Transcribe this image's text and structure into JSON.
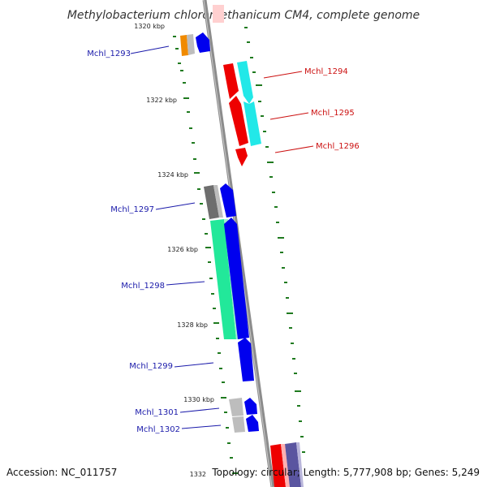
{
  "title": "Methylobacterium chloromethanicum CM4, complete genome",
  "accession": "Accession: NC_011757",
  "topology": "Topology: circular; Length: 5,777,908 bp; Genes: 5,249",
  "ticks": {
    "t1320": "1320 kbp",
    "t1322": "1322 kbp",
    "t1324": "1324 kbp",
    "t1326": "1326 kbp",
    "t1328": "1328 kbp",
    "t1330": "1330 kbp",
    "t1332": "1332"
  },
  "genes": {
    "g1293": "Mchl_1293",
    "g1294": "Mchl_1294",
    "g1295": "Mchl_1295",
    "g1296": "Mchl_1296",
    "g1297": "Mchl_1297",
    "g1298": "Mchl_1298",
    "g1299": "Mchl_1299",
    "g1301": "Mchl_1301",
    "g1302": "Mchl_1302"
  },
  "colors": {
    "backbone": "#8c8c8c",
    "tick": "#1f7a1f",
    "forward_label": "#1a1aaa",
    "reverse_label": "#cc1111",
    "cds_blue": "#0000ee",
    "cds_red": "#ee0000",
    "cds_cyan": "#22e8e8",
    "cds_green": "#22e89a",
    "cds_gray": "#6e6e6e",
    "cds_lightgray": "#bdbdbd",
    "cds_orange": "#f08a00",
    "cds_slate": "#5a55a0"
  }
}
